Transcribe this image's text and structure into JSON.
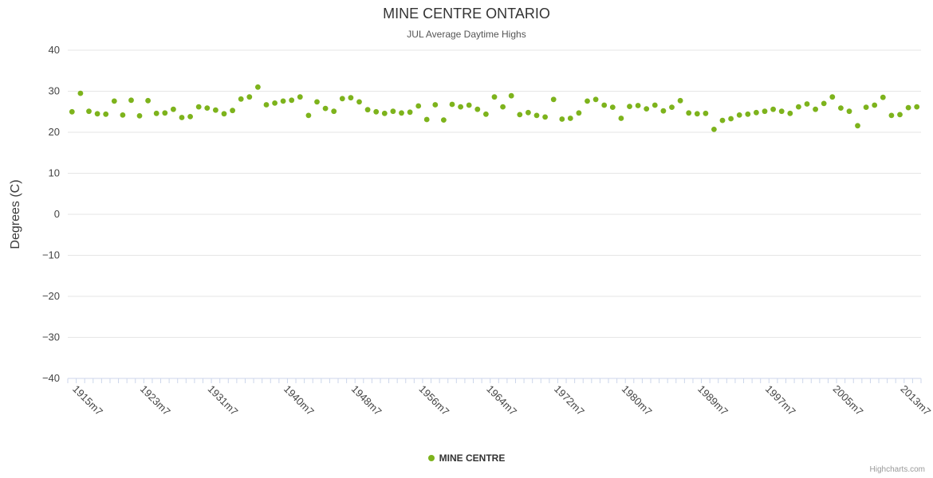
{
  "credits": "Highcharts.com",
  "chart_data": {
    "type": "scatter",
    "title": "MINE CENTRE ONTARIO",
    "subtitle": "JUL Average Daytime Highs",
    "ylabel": "Degrees (C)",
    "ylim": [
      -40,
      40
    ],
    "ytick_interval": 10,
    "yticks": [
      "40",
      "30",
      "20",
      "10",
      "0",
      "−10",
      "−20",
      "−30",
      "−40"
    ],
    "grid": "horizontal",
    "legend_position": "bottom-center",
    "categories": [
      "1915m7",
      "1916m7",
      "1917m7",
      "1918m7",
      "1919m7",
      "1920m7",
      "1921m7",
      "1922m7",
      "1923m7",
      "1924m7",
      "1925m7",
      "1926m7",
      "1927m7",
      "1928m7",
      "1929m7",
      "1930m7",
      "1931m7",
      "1932m7",
      "1933m7",
      "1934m7",
      "1935m7",
      "1936m7",
      "1937m7",
      "1938m7",
      "1939m7",
      "1940m7",
      "1941m7",
      "1942m7",
      "1943m7",
      "1944m7",
      "1945m7",
      "1946m7",
      "1947m7",
      "1948m7",
      "1949m7",
      "1950m7",
      "1951m7",
      "1952m7",
      "1953m7",
      "1954m7",
      "1955m7",
      "1956m7",
      "1957m7",
      "1958m7",
      "1959m7",
      "1960m7",
      "1961m7",
      "1962m7",
      "1963m7",
      "1964m7",
      "1965m7",
      "1966m7",
      "1967m7",
      "1968m7",
      "1969m7",
      "1970m7",
      "1971m7",
      "1972m7",
      "1973m7",
      "1974m7",
      "1975m7",
      "1976m7",
      "1977m7",
      "1978m7",
      "1979m7",
      "1980m7",
      "1981m7",
      "1982m7",
      "1983m7",
      "1984m7",
      "1985m7",
      "1986m7",
      "1987m7",
      "1988m7",
      "1989m7",
      "1990m7",
      "1991m7",
      "1992m7",
      "1993m7",
      "1994m7",
      "1995m7",
      "1996m7",
      "1997m7",
      "1998m7",
      "1999m7",
      "2000m7",
      "2001m7",
      "2002m7",
      "2003m7",
      "2004m7",
      "2005m7",
      "2006m7",
      "2007m7",
      "2008m7",
      "2009m7",
      "2010m7",
      "2011m7",
      "2012m7",
      "2013m7",
      "2014m7",
      "2015m7"
    ],
    "xtick_labels": [
      "1915m7",
      "1923m7",
      "1931m7",
      "1940m7",
      "1948m7",
      "1956m7",
      "1964m7",
      "1972m7",
      "1980m7",
      "1989m7",
      "1997m7",
      "2005m7",
      "2013m7"
    ],
    "series": [
      {
        "name": "MINE CENTRE",
        "color": "#7db31c",
        "values": [
          25.0,
          29.5,
          25.1,
          24.5,
          24.4,
          27.6,
          24.2,
          27.8,
          24.0,
          27.7,
          24.6,
          24.7,
          25.6,
          23.6,
          23.8,
          26.2,
          25.9,
          25.4,
          24.5,
          25.3,
          28.1,
          28.6,
          31.0,
          26.7,
          27.1,
          27.6,
          27.8,
          28.6,
          24.1,
          27.4,
          25.8,
          25.1,
          28.2,
          28.4,
          27.4,
          25.5,
          25.0,
          24.6,
          25.1,
          24.7,
          24.9,
          26.4,
          23.1,
          26.7,
          23.0,
          26.8,
          26.2,
          26.6,
          25.6,
          24.4,
          28.6,
          26.2,
          28.9,
          24.3,
          24.8,
          24.1,
          23.7,
          28.0,
          23.2,
          23.4,
          24.7,
          27.6,
          28.0,
          26.6,
          26.1,
          23.4,
          26.3,
          26.5,
          25.7,
          26.6,
          25.2,
          26.1,
          27.7,
          24.7,
          24.5,
          24.6,
          20.7,
          22.9,
          23.3,
          24.2,
          24.4,
          24.8,
          25.1,
          25.6,
          25.1,
          24.6,
          26.2,
          26.9,
          25.6,
          27.0,
          28.6,
          25.9,
          25.1,
          21.6,
          26.1,
          26.6,
          28.5,
          24.1,
          24.3,
          26.0,
          26.2
        ]
      }
    ],
    "style": {
      "grid_color": "#e6e6e6",
      "axis_line_color": "#ccd6eb",
      "tick_color": "#ccd6eb",
      "label_color": "#444444",
      "axis_title_color": "#3a3a3a"
    }
  }
}
